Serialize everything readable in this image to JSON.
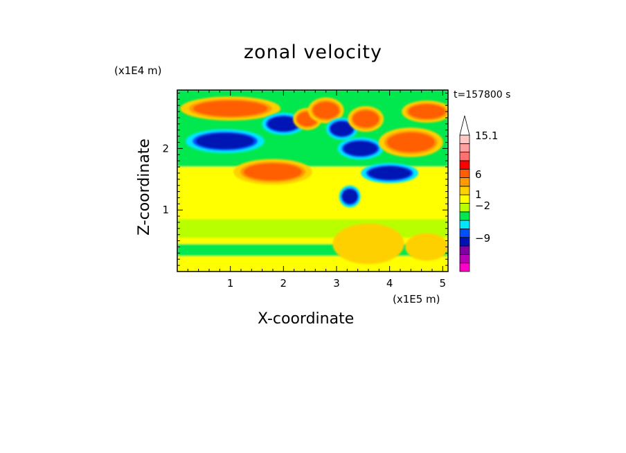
{
  "chart_data": {
    "type": "heatmap",
    "title": "zonal velocity",
    "xlabel": "X-coordinate",
    "ylabel": "Z-coordinate",
    "x_unit": "(x1E5 m)",
    "y_unit": "(x1E4 m)",
    "time_label": "t=157800 s",
    "xlim": [
      0.0,
      5.1
    ],
    "ylim": [
      0.0,
      2.95
    ],
    "x_ticks": [
      1,
      2,
      3,
      4,
      5
    ],
    "y_ticks": [
      1,
      2
    ],
    "colorbar": {
      "labels": [
        {
          "text": "15.1",
          "value": 15.1
        },
        {
          "text": "6",
          "value": 6
        },
        {
          "text": "1",
          "value": 1
        },
        {
          "text": "−2",
          "value": -2
        },
        {
          "text": "−9",
          "value": -9
        }
      ],
      "colors": [
        "#ff00c8",
        "#b900b9",
        "#8000a0",
        "#0012b4",
        "#0050ff",
        "#00e6ff",
        "#00e84e",
        "#b8ff00",
        "#ffff00",
        "#ffd000",
        "#ff9a00",
        "#ff5e00",
        "#ff0000",
        "#ff7070",
        "#ffa0a0",
        "#ffc8c8"
      ]
    },
    "contour_features": [
      {
        "kind": "blob",
        "x": 1.0,
        "z": 2.65,
        "rx": 0.7,
        "rz": 0.13,
        "value": 6
      },
      {
        "kind": "blob",
        "x": 0.9,
        "z": 2.12,
        "rx": 0.55,
        "rz": 0.13,
        "value": -9
      },
      {
        "kind": "blob",
        "x": 1.8,
        "z": 1.62,
        "rx": 0.55,
        "rz": 0.14,
        "value": 6
      },
      {
        "kind": "blob",
        "x": 2.0,
        "z": 2.4,
        "rx": 0.3,
        "rz": 0.12,
        "value": -9
      },
      {
        "kind": "blob",
        "x": 2.45,
        "z": 2.48,
        "rx": 0.2,
        "rz": 0.12,
        "value": 6
      },
      {
        "kind": "blob",
        "x": 2.8,
        "z": 2.62,
        "rx": 0.25,
        "rz": 0.14,
        "value": 6
      },
      {
        "kind": "blob",
        "x": 3.1,
        "z": 2.32,
        "rx": 0.22,
        "rz": 0.12,
        "value": -9
      },
      {
        "kind": "blob",
        "x": 3.45,
        "z": 2.0,
        "rx": 0.32,
        "rz": 0.12,
        "value": -9
      },
      {
        "kind": "blob",
        "x": 3.55,
        "z": 2.48,
        "rx": 0.25,
        "rz": 0.14,
        "value": 6
      },
      {
        "kind": "blob",
        "x": 4.0,
        "z": 1.6,
        "rx": 0.4,
        "rz": 0.11,
        "value": -9
      },
      {
        "kind": "blob",
        "x": 3.25,
        "z": 1.22,
        "rx": 0.15,
        "rz": 0.12,
        "value": -9
      },
      {
        "kind": "blob",
        "x": 4.4,
        "z": 2.1,
        "rx": 0.45,
        "rz": 0.16,
        "value": 6
      },
      {
        "kind": "blob",
        "x": 4.7,
        "z": 2.6,
        "rx": 0.35,
        "rz": 0.12,
        "value": 6
      },
      {
        "kind": "blob",
        "x": 3.6,
        "z": 0.45,
        "rx": 0.5,
        "rz": 0.22,
        "value": 1
      },
      {
        "kind": "blob",
        "x": 4.7,
        "z": 0.4,
        "rx": 0.3,
        "rz": 0.15,
        "value": 1
      }
    ]
  }
}
